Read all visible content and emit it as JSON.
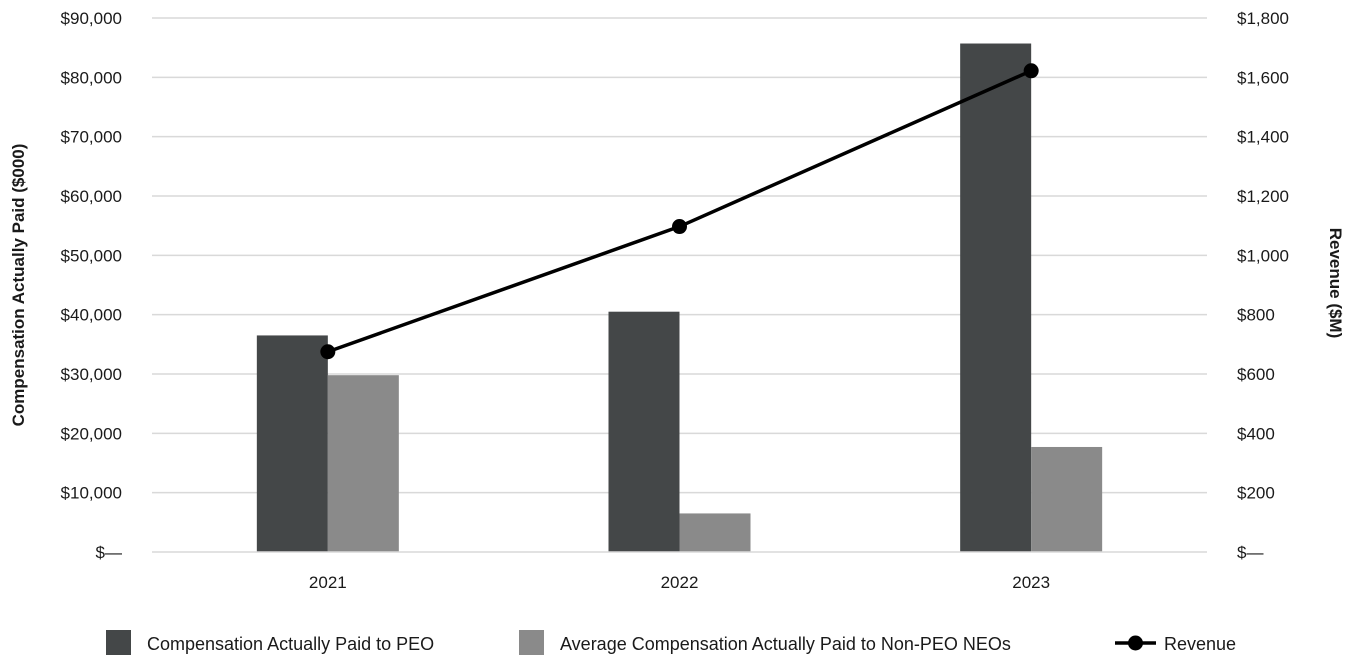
{
  "chart_data": {
    "type": "bar",
    "categories": [
      "2021",
      "2022",
      "2023"
    ],
    "series": [
      {
        "name": "Compensation Actually Paid to PEO",
        "kind": "bar",
        "axis": "left",
        "color": "#444748",
        "values": [
          36500,
          40500,
          85700
        ]
      },
      {
        "name": "Average Compensation Actually Paid to Non-PEO NEOs",
        "kind": "bar",
        "axis": "left",
        "color": "#8a8a8a",
        "values": [
          29800,
          6500,
          17700
        ]
      },
      {
        "name": "Revenue",
        "kind": "line",
        "axis": "right",
        "color": "#000000",
        "values": [
          675,
          1097,
          1622
        ]
      }
    ],
    "ylabel": "Compensation Actually Paid ($000)",
    "y2label": "Revenue ($M)",
    "ylim": [
      0,
      90000
    ],
    "y2lim": [
      0,
      1800
    ],
    "yticks": [
      "$—",
      "$10,000",
      "$20,000",
      "$30,000",
      "$40,000",
      "$50,000",
      "$60,000",
      "$70,000",
      "$80,000",
      "$90,000"
    ],
    "y2ticks": [
      "$—",
      "$200",
      "$400",
      "$600",
      "$800",
      "$1,000",
      "$1,200",
      "$1,400",
      "$1,600",
      "$1,800"
    ],
    "grid": true,
    "legend_position": "bottom"
  }
}
